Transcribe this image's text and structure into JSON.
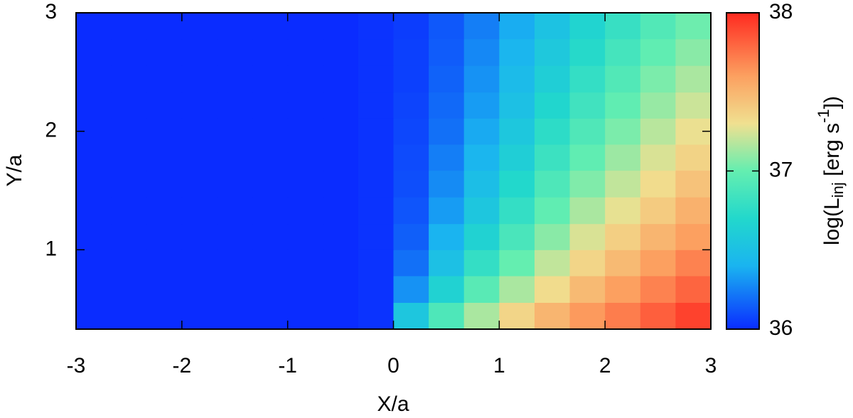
{
  "chart_data": {
    "type": "heatmap",
    "xlabel": "X/a",
    "ylabel": "Y/a",
    "colorbar_label": [
      "log(L",
      "inj",
      " [erg s",
      "-1",
      "])"
    ],
    "x": [
      -2.833,
      -2.5,
      -2.167,
      -1.833,
      -1.5,
      -1.167,
      -0.833,
      -0.5,
      -0.167,
      0.167,
      0.5,
      0.833,
      1.167,
      1.5,
      1.833,
      2.167,
      2.5,
      2.833
    ],
    "y": [
      0.44,
      0.67,
      0.89,
      1.11,
      1.33,
      1.56,
      1.78,
      2.0,
      2.22,
      2.44,
      2.67,
      2.89
    ],
    "values": [
      [
        36.0,
        36.0,
        36.0,
        36.0,
        36.0,
        36.0,
        36.0,
        36.0,
        36.02,
        36.55,
        36.9,
        37.15,
        37.35,
        37.5,
        37.62,
        37.72,
        37.82,
        37.92
      ],
      [
        36.0,
        36.0,
        36.0,
        36.0,
        36.0,
        36.0,
        36.0,
        36.0,
        36.02,
        36.3,
        36.65,
        36.95,
        37.15,
        37.32,
        37.48,
        37.6,
        37.7,
        37.8
      ],
      [
        36.0,
        36.0,
        36.0,
        36.0,
        36.0,
        36.0,
        36.0,
        36.0,
        36.02,
        36.2,
        36.5,
        36.78,
        37.0,
        37.2,
        37.35,
        37.48,
        37.6,
        37.7
      ],
      [
        36.0,
        36.0,
        36.0,
        36.0,
        36.0,
        36.0,
        36.0,
        36.0,
        36.02,
        36.15,
        36.4,
        36.65,
        36.88,
        37.08,
        37.25,
        37.38,
        37.5,
        37.6
      ],
      [
        36.0,
        36.0,
        36.0,
        36.0,
        36.0,
        36.0,
        36.0,
        36.0,
        36.02,
        36.12,
        36.33,
        36.55,
        36.78,
        36.98,
        37.15,
        37.28,
        37.4,
        37.52
      ],
      [
        36.0,
        36.0,
        36.0,
        36.0,
        36.0,
        36.0,
        36.0,
        36.0,
        36.02,
        36.1,
        36.28,
        36.48,
        36.7,
        36.9,
        37.06,
        37.2,
        37.32,
        37.44
      ],
      [
        36.0,
        36.0,
        36.0,
        36.0,
        36.0,
        36.0,
        36.0,
        36.0,
        36.02,
        36.09,
        36.24,
        36.42,
        36.62,
        36.82,
        36.98,
        37.12,
        37.25,
        37.36
      ],
      [
        36.0,
        36.0,
        36.0,
        36.0,
        36.0,
        36.0,
        36.0,
        36.0,
        36.02,
        36.08,
        36.2,
        36.37,
        36.56,
        36.75,
        36.91,
        37.05,
        37.18,
        37.29
      ],
      [
        36.0,
        36.0,
        36.0,
        36.0,
        36.0,
        36.0,
        36.0,
        36.0,
        36.02,
        36.07,
        36.18,
        36.33,
        36.5,
        36.68,
        36.84,
        36.98,
        37.11,
        37.22
      ],
      [
        36.0,
        36.0,
        36.0,
        36.0,
        36.0,
        36.0,
        36.0,
        36.0,
        36.02,
        36.06,
        36.16,
        36.3,
        36.46,
        36.62,
        36.78,
        36.92,
        37.05,
        37.15
      ],
      [
        36.0,
        36.0,
        36.0,
        36.0,
        36.0,
        36.0,
        36.0,
        36.0,
        36.02,
        36.06,
        36.14,
        36.27,
        36.42,
        36.57,
        36.72,
        36.86,
        36.98,
        37.08
      ],
      [
        36.0,
        36.0,
        36.0,
        36.0,
        36.0,
        36.0,
        36.0,
        36.0,
        36.02,
        36.05,
        36.13,
        36.24,
        36.38,
        36.52,
        36.67,
        36.8,
        36.92,
        37.02
      ]
    ],
    "xlim": [
      -3,
      3
    ],
    "ylim": [
      0.33,
      3
    ],
    "xticks": [
      -3,
      -2,
      -1,
      0,
      1,
      2,
      3
    ],
    "yticks": [
      1,
      2,
      3
    ],
    "zlim": [
      36,
      38
    ],
    "zticks": [
      36,
      37,
      38
    ],
    "colorscale": [
      [
        0,
        "#0a2cff"
      ],
      [
        0.2,
        "#1ab4f0"
      ],
      [
        0.35,
        "#22d8cc"
      ],
      [
        0.5,
        "#64eeb0"
      ],
      [
        0.65,
        "#f0e090"
      ],
      [
        0.8,
        "#fca060"
      ],
      [
        1,
        "#ff2a20"
      ]
    ]
  }
}
